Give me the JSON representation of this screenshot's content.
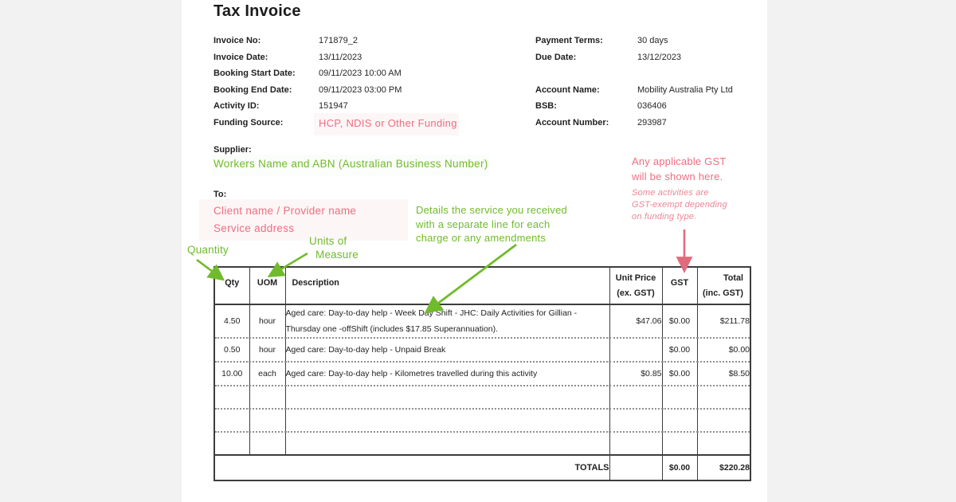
{
  "colors": {
    "green": "#70bb2b",
    "pink": "#ee6e80",
    "pink_soft": "#f08494",
    "pink_arrow": "#e06c7b",
    "table_border": "#3d3d3d"
  },
  "title": "Tax Invoice",
  "fields_left": [
    {
      "row": 0,
      "label": "Invoice No:",
      "value": "171879_2"
    },
    {
      "row": 1,
      "label": "Invoice Date:",
      "value": "13/11/2023"
    },
    {
      "row": 2,
      "label": "Booking Start Date:",
      "value": "09/11/2023 10:00 AM"
    },
    {
      "row": 3,
      "label": "Booking End Date:",
      "value": "09/11/2023 03:00 PM"
    },
    {
      "row": 4,
      "label": "Activity ID:",
      "value": "151947"
    },
    {
      "row": 5,
      "label": "Funding Source:",
      "value": "HCP, NDIS or Other Funding",
      "accent": true
    }
  ],
  "fields_right": [
    {
      "row": 0,
      "label": "Payment Terms:",
      "value": "30 days"
    },
    {
      "row": 1,
      "label": "Due Date:",
      "value": "13/12/2023"
    },
    {
      "row": 3,
      "label": "Account Name:",
      "value": "Mobility Australia Pty Ltd"
    },
    {
      "row": 4,
      "label": "BSB:",
      "value": "036406"
    },
    {
      "row": 5,
      "label": "Account Number:",
      "value": "293987"
    }
  ],
  "supplier": {
    "label": "Supplier:",
    "annotation": "Workers Name and ABN (Australian Business Number)"
  },
  "to": {
    "label": "To:",
    "line1": "Client name / Provider name",
    "line2": "Service address"
  },
  "annotations": {
    "quantity": "Quantity",
    "uom_line1": "Units of",
    "uom_line2": "Measure",
    "details_lines": [
      "Details the service you received",
      "with a separate line for each",
      "charge or any amendments"
    ],
    "gst_lines": [
      "Any applicable GST",
      "will be shown here."
    ],
    "gst_italic_lines": [
      "Some activities are",
      "GST-exempt depending",
      "on funding type."
    ]
  },
  "table": {
    "headers": [
      {
        "line1": "Qty"
      },
      {
        "line1": "UOM"
      },
      {
        "line1": "Description"
      },
      {
        "line1": "Unit Price",
        "line2": "(ex. GST)"
      },
      {
        "line1": "GST"
      },
      {
        "line1": "Total",
        "line2": "(inc. GST)"
      }
    ],
    "rows": [
      {
        "qty": "4.50",
        "uom": "hour",
        "description": "Aged care: Day-to-day help - Week Day Shift - JHC: Daily Activities for Gillian - Thursday one -offShift (includes $17.85 Superannuation).",
        "unit_price": "$47.06",
        "gst": "$0.00",
        "total": "$211.78"
      },
      {
        "qty": "0.50",
        "uom": "hour",
        "description": "Aged care: Day-to-day help - Unpaid Break",
        "unit_price": "",
        "gst": "$0.00",
        "total": "$0.00"
      },
      {
        "qty": "10.00",
        "uom": "each",
        "description": "Aged care: Day-to-day help - Kilometres travelled during this activity",
        "unit_price": "$0.85",
        "gst": "$0.00",
        "total": "$8.50"
      }
    ],
    "empty_row_count": 3,
    "totals": {
      "label": "TOTALS",
      "unit_price": "",
      "gst": "$0.00",
      "total": "$220.28"
    }
  }
}
